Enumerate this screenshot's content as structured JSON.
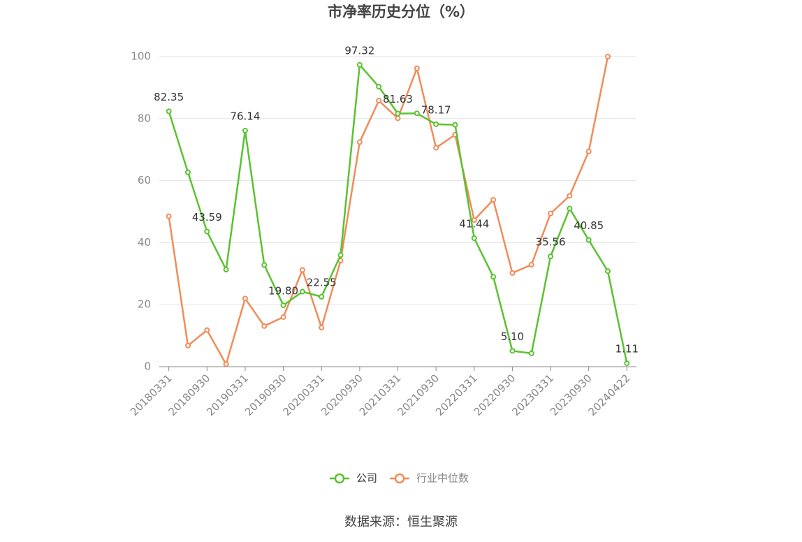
{
  "chart_data": {
    "type": "line",
    "title": "市净率历史分位（%）",
    "source": "数据来源：恒生聚源",
    "categories": [
      "20180331",
      null,
      "20180930",
      null,
      "20190331",
      null,
      "20190930",
      null,
      "20200331",
      null,
      "20200930",
      null,
      "20210331",
      null,
      "20210930",
      null,
      "20220331",
      null,
      "20220930",
      null,
      "20230331",
      null,
      "20230930",
      null,
      "20240422"
    ],
    "series": [
      {
        "name": "公司",
        "color": "#5ac230",
        "values": [
          82.35,
          62.7,
          43.59,
          31.3,
          76.14,
          32.8,
          19.8,
          24.2,
          22.55,
          36,
          97.32,
          90.3,
          81.63,
          81.7,
          78.17,
          78.0,
          41.44,
          29,
          5.1,
          4.3,
          35.56,
          51,
          40.85,
          30.8,
          1.11
        ],
        "value_labels": [
          "82.35",
          null,
          "43.59",
          null,
          "76.14",
          null,
          "19.80",
          null,
          "22.55",
          null,
          "97.32",
          null,
          "81.63",
          null,
          "78.17",
          null,
          "41.44",
          null,
          "5.10",
          null,
          "35.56",
          null,
          "40.85",
          null,
          "1.11"
        ]
      },
      {
        "name": "行业中位数",
        "color": "#f08c5a",
        "values": [
          48.5,
          6.8,
          11.8,
          0.8,
          22,
          13.1,
          16,
          31.2,
          12.6,
          34.2,
          72.4,
          85.8,
          80.1,
          96.2,
          70.6,
          74.8,
          47.3,
          53.8,
          30.2,
          32.9,
          49.4,
          55.1,
          69.4,
          100,
          null
        ]
      }
    ],
    "ylim": [
      0,
      100
    ],
    "yticks": [
      0,
      20,
      40,
      60,
      80,
      100
    ],
    "grid": true
  }
}
